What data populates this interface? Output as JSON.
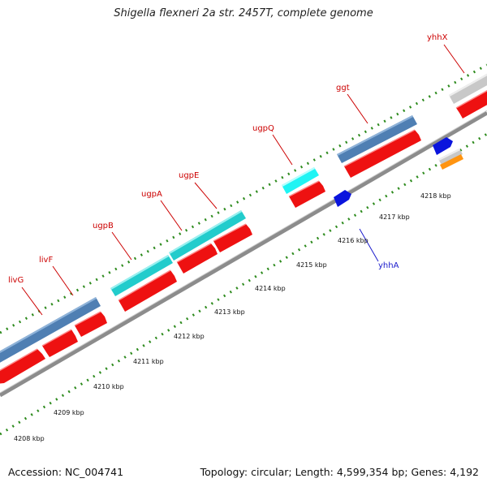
{
  "title": "Shigella flexneri 2a str. 2457T, complete genome",
  "footer": {
    "accession": "Accession: NC_004741",
    "stats": "Topology: circular; Length: 4,599,354 bp; Genes: 4,192"
  },
  "colors": {
    "backbone": "#8c8c8c",
    "tick": "#2e8b1e",
    "cds": "#ee1111",
    "gene_steelblue": "#4f7fb3",
    "gene_teal": "#22cccc",
    "gene_cyan": "#1ff4f4",
    "gene_grey": "#c8c8c8",
    "gene_blue": "#0a14dd",
    "gene_orange": "#ff9410",
    "label_red": "#cc0000",
    "label_blue": "#1a1acc"
  },
  "axis": {
    "unit": "kbp",
    "tick_labels": [
      "4208 kbp",
      "4209 kbp",
      "4210 kbp",
      "4211 kbp",
      "4212 kbp",
      "4213 kbp",
      "4214 kbp",
      "4215 kbp",
      "4216 kbp",
      "4217 kbp",
      "4218 kbp"
    ]
  },
  "gene_labels": [
    {
      "name": "livG",
      "color_role": "label_red"
    },
    {
      "name": "livF",
      "color_role": "label_red"
    },
    {
      "name": "ugpB",
      "color_role": "label_red"
    },
    {
      "name": "ugpA",
      "color_role": "label_red"
    },
    {
      "name": "ugpE",
      "color_role": "label_red"
    },
    {
      "name": "ugpQ",
      "color_role": "label_red"
    },
    {
      "name": "ggt",
      "color_role": "label_red"
    },
    {
      "name": "yhhX",
      "color_role": "label_red"
    },
    {
      "name": "yhhA",
      "color_role": "label_blue"
    }
  ],
  "feature_tracks": [
    {
      "role": "upper-gene-track",
      "colors": [
        "gene_steelblue",
        "gene_teal",
        "gene_teal",
        "gene_cyan",
        "gene_steelblue",
        "gene_grey"
      ]
    },
    {
      "role": "upper-cds-track",
      "colors": [
        "cds",
        "cds",
        "cds",
        "cds",
        "cds",
        "cds",
        "cds",
        "cds",
        "cds",
        "cds",
        "cds"
      ]
    },
    {
      "role": "lower-gene-track",
      "colors": [
        "gene_blue",
        "gene_blue",
        "gene_grey",
        "gene_orange"
      ]
    }
  ]
}
